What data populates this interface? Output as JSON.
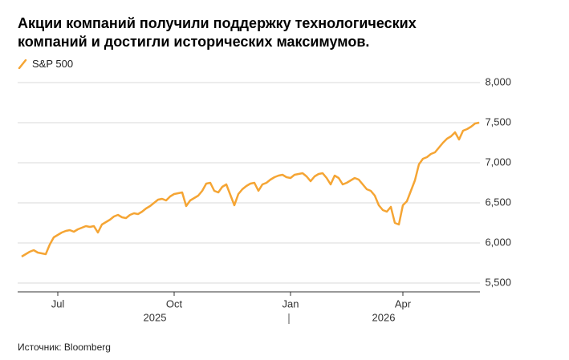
{
  "chart_data": {
    "type": "line",
    "title": "Акции компаний получили поддержку технологических компаний и достигли исторических максимумов.",
    "source": "Источник: Bloomberg",
    "categories": [
      null,
      null,
      null,
      null,
      null,
      null,
      null,
      null,
      null,
      "Jul",
      null,
      null,
      null,
      null,
      null,
      null,
      null,
      null,
      null,
      null,
      null,
      null,
      null,
      null,
      null,
      null,
      null,
      null,
      null,
      null,
      null,
      null,
      null,
      null,
      null,
      null,
      null,
      null,
      "Oct",
      null,
      null,
      null,
      null,
      null,
      null,
      null,
      null,
      null,
      null,
      null,
      null,
      null,
      null,
      null,
      null,
      null,
      null,
      null,
      null,
      null,
      null,
      null,
      null,
      null,
      null,
      null,
      null,
      "Jan",
      null,
      null,
      null,
      null,
      null,
      null,
      null,
      null,
      null,
      null,
      null,
      null,
      null,
      null,
      null,
      null,
      null,
      null,
      null,
      null,
      null,
      null,
      null,
      null,
      null,
      null,
      null,
      "Apr",
      null,
      null,
      null,
      null,
      null,
      null,
      null,
      null,
      null,
      null,
      null,
      null,
      null,
      null,
      null,
      null,
      null,
      null,
      null
    ],
    "x_group_labels": [
      "2025",
      "2026"
    ],
    "series": [
      {
        "name": "S&P 500",
        "color": "#f5a534",
        "values": [
          5830,
          5860,
          5890,
          5910,
          5880,
          5870,
          5860,
          5980,
          6070,
          6100,
          6130,
          6150,
          6160,
          6140,
          6170,
          6190,
          6210,
          6200,
          6210,
          6130,
          6230,
          6260,
          6290,
          6330,
          6350,
          6320,
          6310,
          6350,
          6370,
          6360,
          6390,
          6430,
          6460,
          6500,
          6540,
          6550,
          6530,
          6580,
          6610,
          6620,
          6630,
          6460,
          6530,
          6560,
          6590,
          6650,
          6740,
          6750,
          6650,
          6630,
          6700,
          6730,
          6600,
          6470,
          6610,
          6670,
          6710,
          6740,
          6750,
          6650,
          6730,
          6750,
          6790,
          6820,
          6840,
          6850,
          6820,
          6810,
          6850,
          6860,
          6870,
          6830,
          6770,
          6830,
          6860,
          6870,
          6810,
          6730,
          6840,
          6810,
          6730,
          6750,
          6780,
          6810,
          6790,
          6730,
          6670,
          6650,
          6590,
          6470,
          6410,
          6390,
          6450,
          6250,
          6230,
          6470,
          6520,
          6650,
          6780,
          6980,
          7050,
          7070,
          7110,
          7130,
          7190,
          7250,
          7300,
          7330,
          7380,
          7290,
          7400,
          7420,
          7450,
          7490,
          7500
        ]
      }
    ],
    "ylim": [
      5500,
      8000
    ],
    "yticks": [
      {
        "value": 5500,
        "label": "5,500"
      },
      {
        "value": 6000,
        "label": "6,000"
      },
      {
        "value": 6500,
        "label": "6,500"
      },
      {
        "value": 7000,
        "label": "7,000"
      },
      {
        "value": 7500,
        "label": "7,500"
      },
      {
        "value": 8000,
        "label": "8,000"
      }
    ],
    "grid": true
  }
}
